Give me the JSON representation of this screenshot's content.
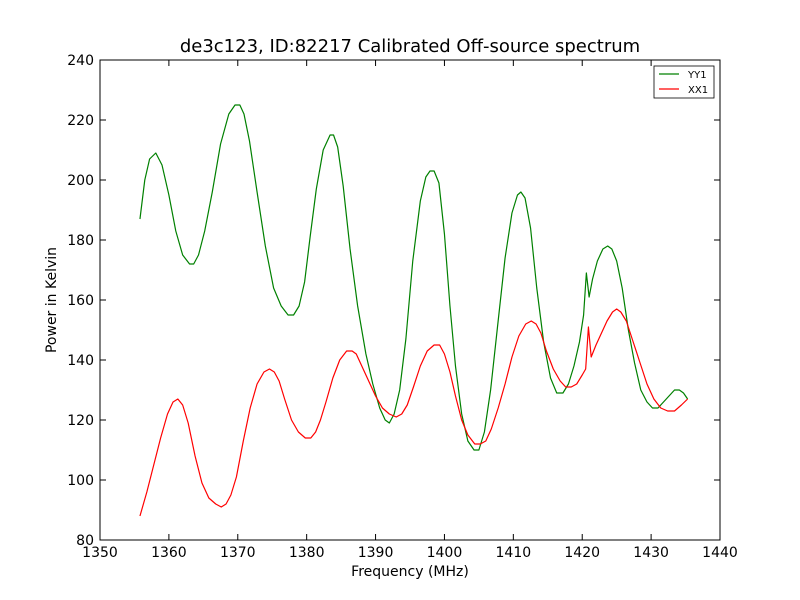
{
  "chart_data": {
    "type": "line",
    "title": "de3c123, ID:82217 Calibrated Off-source spectrum",
    "xlabel": "Frequency (MHz)",
    "ylabel": "Power in Kelvin",
    "xlim": [
      1350,
      1440
    ],
    "ylim": [
      80,
      240
    ],
    "xticks": [
      1350,
      1360,
      1370,
      1380,
      1390,
      1400,
      1410,
      1420,
      1430,
      1440
    ],
    "yticks": [
      80,
      100,
      120,
      140,
      160,
      180,
      200,
      220,
      240
    ],
    "grid": false,
    "legend_position": "top-right",
    "series": [
      {
        "name": "YY1",
        "color": "#008000",
        "x": [
          1355.8,
          1356.5,
          1357.2,
          1358.1,
          1359.0,
          1360.0,
          1361.0,
          1362.0,
          1363.0,
          1363.6,
          1364.3,
          1365.2,
          1366.3,
          1367.5,
          1368.7,
          1369.6,
          1370.3,
          1370.9,
          1371.7,
          1372.8,
          1374.0,
          1375.2,
          1376.3,
          1377.3,
          1378.1,
          1378.9,
          1379.7,
          1380.5,
          1381.4,
          1382.4,
          1383.4,
          1383.9,
          1384.5,
          1385.3,
          1386.3,
          1387.4,
          1388.6,
          1389.6,
          1390.6,
          1391.4,
          1392.0,
          1392.7,
          1393.5,
          1394.4,
          1395.4,
          1396.5,
          1397.3,
          1397.9,
          1398.5,
          1399.2,
          1400.0,
          1400.8,
          1401.6,
          1402.5,
          1403.4,
          1404.3,
          1405.0,
          1405.8,
          1406.7,
          1407.7,
          1408.8,
          1409.8,
          1410.6,
          1411.1,
          1411.7,
          1412.5,
          1413.4,
          1414.4,
          1415.4,
          1416.3,
          1417.2,
          1418.0,
          1418.8,
          1419.6,
          1420.2,
          1420.6,
          1421.0,
          1421.5,
          1422.2,
          1423.0,
          1423.7,
          1424.3,
          1425.0,
          1425.8,
          1426.7,
          1427.6,
          1428.5,
          1429.4,
          1430.2,
          1431.0,
          1431.8,
          1432.6,
          1433.4,
          1434.1,
          1434.7,
          1435.3
        ],
        "values": [
          187,
          200,
          207,
          209,
          205,
          195,
          183,
          175,
          172,
          172,
          175,
          183,
          196,
          212,
          222,
          225,
          225,
          222,
          213,
          196,
          178,
          164,
          158,
          155,
          155,
          158,
          166,
          181,
          197,
          210,
          215,
          215,
          211,
          198,
          177,
          158,
          142,
          132,
          124,
          120,
          119,
          122,
          130,
          147,
          173,
          193,
          201,
          203,
          203,
          199,
          182,
          158,
          138,
          122,
          113,
          110,
          110,
          116,
          130,
          151,
          174,
          189,
          195,
          196,
          194,
          184,
          164,
          146,
          134,
          129,
          129,
          132,
          138,
          146,
          155,
          169,
          161,
          167,
          173,
          177,
          178,
          177,
          173,
          164,
          150,
          139,
          130,
          126,
          124,
          124,
          126,
          128,
          130,
          130,
          129,
          127
        ]
      },
      {
        "name": "XX1",
        "color": "#ff0000",
        "x": [
          1355.8,
          1356.8,
          1357.8,
          1358.8,
          1359.8,
          1360.6,
          1361.3,
          1362.0,
          1362.8,
          1363.8,
          1364.8,
          1365.8,
          1366.8,
          1367.6,
          1368.3,
          1369.0,
          1369.8,
          1370.8,
          1371.8,
          1372.8,
          1373.8,
          1374.6,
          1375.3,
          1376.0,
          1376.8,
          1377.8,
          1378.8,
          1379.8,
          1380.6,
          1381.3,
          1382.0,
          1382.8,
          1383.8,
          1384.8,
          1385.8,
          1386.6,
          1387.2,
          1388.0,
          1389.0,
          1390.0,
          1391.0,
          1392.0,
          1393.0,
          1393.8,
          1394.6,
          1395.5,
          1396.5,
          1397.5,
          1398.5,
          1399.3,
          1400.0,
          1400.8,
          1401.6,
          1402.5,
          1403.4,
          1404.4,
          1405.2,
          1406.0,
          1406.8,
          1407.8,
          1408.8,
          1409.8,
          1410.8,
          1411.8,
          1412.6,
          1413.3,
          1414.0,
          1414.8,
          1415.8,
          1416.8,
          1417.6,
          1418.4,
          1419.2,
          1420.0,
          1420.5,
          1420.9,
          1421.3,
          1422.0,
          1422.8,
          1423.6,
          1424.4,
          1425.0,
          1425.6,
          1426.4,
          1427.4,
          1428.4,
          1429.4,
          1430.4,
          1431.4,
          1432.4,
          1433.4,
          1434.4,
          1435.3
        ],
        "values": [
          88,
          96,
          105,
          114,
          122,
          126,
          127,
          125,
          119,
          108,
          99,
          94,
          92,
          91,
          92,
          95,
          101,
          113,
          124,
          132,
          136,
          137,
          136,
          133,
          127,
          120,
          116,
          114,
          114,
          116,
          120,
          126,
          134,
          140,
          143,
          143,
          142,
          138,
          133,
          128,
          124,
          122,
          121,
          122,
          125,
          131,
          138,
          143,
          145,
          145,
          142,
          136,
          128,
          120,
          115,
          112,
          112,
          113,
          117,
          124,
          132,
          141,
          148,
          152,
          153,
          152,
          149,
          143,
          137,
          133,
          131,
          131,
          132,
          135,
          137,
          151,
          141,
          145,
          149,
          153,
          156,
          157,
          156,
          153,
          146,
          139,
          132,
          127,
          124,
          123,
          123,
          125,
          127
        ]
      }
    ]
  }
}
